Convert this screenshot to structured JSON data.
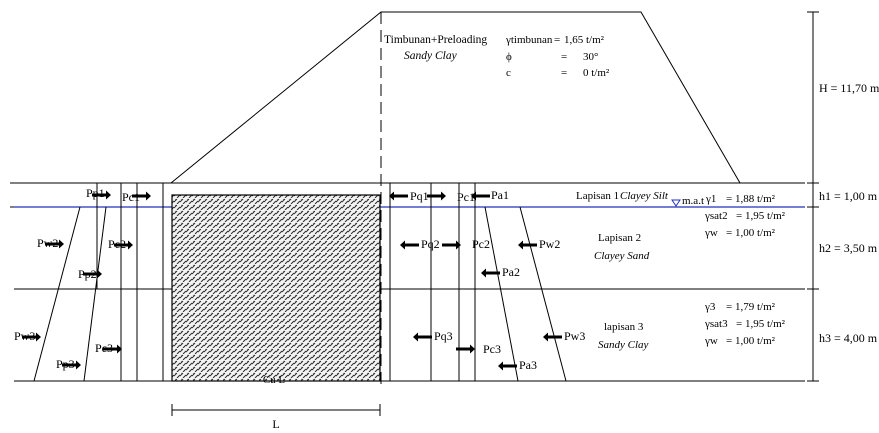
{
  "embankment": {
    "title": "Timbunan+Preloading",
    "material": "Sandy Clay",
    "props": [
      {
        "sym": "γtimbunan",
        "eq": "=",
        "val": "1,65 t/m²"
      },
      {
        "sym": "ϕ",
        "eq": "=",
        "val": "30°"
      },
      {
        "sym": "c",
        "eq": "=",
        "val": "0 t/m²"
      }
    ]
  },
  "dims": {
    "H": "H = 11,70 m",
    "h1": "h1 = 1,00 m",
    "h2": "h2 = 3,50 m",
    "h3": "h3 = 4,00 m",
    "L": "L",
    "cu": "Cu L"
  },
  "water_table": "m.a.t",
  "layers": [
    {
      "name": "Lapisan 1",
      "soil": "Clayey Silt",
      "props": [
        {
          "sym": "γ1",
          "val": "= 1,88 t/m²"
        }
      ]
    },
    {
      "name": "Lapisan 2",
      "soil": "Clayey Sand",
      "props": [
        {
          "sym": "γsat2",
          "val": "= 1,95 t/m²"
        },
        {
          "sym": "γw",
          "val": "= 1,00 t/m²"
        }
      ]
    },
    {
      "name": "lapisan 3",
      "soil": "Sandy Clay",
      "props": [
        {
          "sym": "γ3",
          "val": "= 1,79 t/m²"
        },
        {
          "sym": "γsat3",
          "val": "= 1,95 t/m²"
        },
        {
          "sym": "γw",
          "val": "= 1,00 t/m²"
        }
      ]
    }
  ],
  "forces_left": [
    "Pp1",
    "Pc1",
    "Pw2",
    "Pc2",
    "Pp2",
    "Pw3",
    "Pp3",
    "Pc3"
  ],
  "forces_right": [
    "Pq1",
    "Pc1",
    "Pa1",
    "Pq2",
    "Pc2",
    "Pw2",
    "Pa2",
    "Pq3",
    "Pc3",
    "Pw3",
    "Pa3"
  ],
  "colors": {
    "line": "#000000",
    "water": "#2233bb",
    "fill": "#ffffff"
  }
}
